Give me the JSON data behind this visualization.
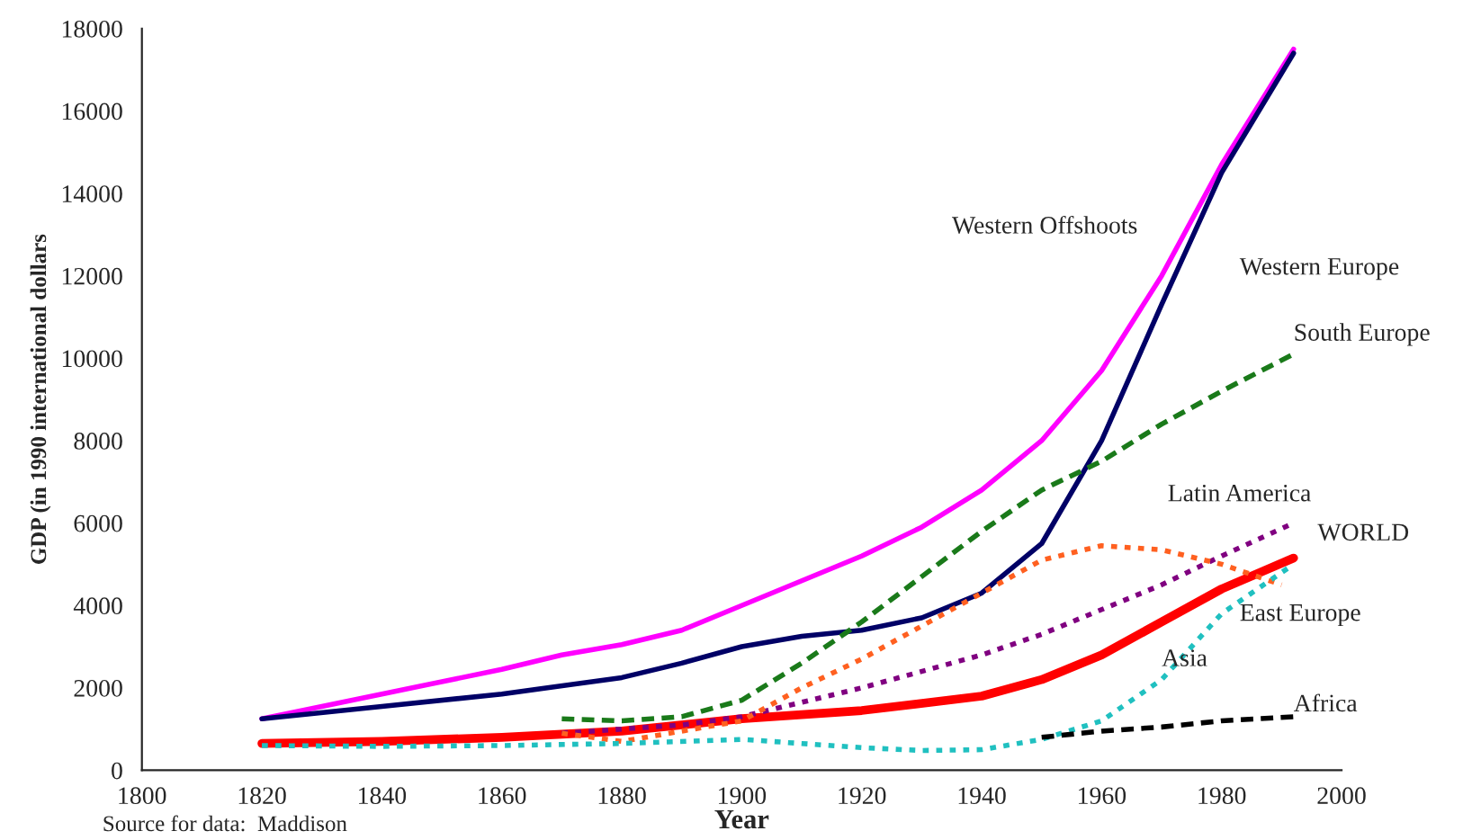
{
  "chart_data": {
    "type": "line",
    "xlabel": "Year",
    "ylabel": "GDP (in 1990 international dollars",
    "annotations": [
      "Source for data:  Maddison"
    ],
    "xlim": [
      1800,
      2000
    ],
    "xticks": [
      1800,
      1820,
      1840,
      1860,
      1880,
      1900,
      1920,
      1940,
      1960,
      1980,
      2000
    ],
    "ylim": [
      0,
      18000
    ],
    "yticks": [
      0,
      2000,
      4000,
      6000,
      8000,
      10000,
      12000,
      14000,
      16000,
      18000
    ],
    "grid": false,
    "legend": false,
    "marker": "none",
    "series": [
      {
        "name": "Western Offshoots",
        "color": "#ff00ff",
        "line_style": "solid",
        "x": [
          1820,
          1840,
          1860,
          1870,
          1880,
          1890,
          1900,
          1910,
          1920,
          1930,
          1940,
          1950,
          1960,
          1970,
          1980,
          1992
        ],
        "values": [
          1250,
          1850,
          2450,
          2800,
          3050,
          3400,
          4000,
          4600,
          5200,
          5900,
          6800,
          8000,
          9700,
          12000,
          14700,
          17500
        ]
      },
      {
        "name": "Western Europe",
        "color": "#000066",
        "line_style": "solid",
        "x": [
          1820,
          1840,
          1860,
          1880,
          1890,
          1900,
          1910,
          1920,
          1930,
          1940,
          1950,
          1960,
          1970,
          1980,
          1992
        ],
        "values": [
          1250,
          1550,
          1850,
          2250,
          2600,
          3000,
          3250,
          3400,
          3700,
          4300,
          5500,
          8000,
          11300,
          14500,
          17400
        ]
      },
      {
        "name": "South Europe",
        "color": "#1a7a1a",
        "line_style": "dashed",
        "x": [
          1870,
          1880,
          1890,
          1900,
          1910,
          1920,
          1930,
          1940,
          1950,
          1960,
          1970,
          1980,
          1992
        ],
        "values": [
          1250,
          1200,
          1300,
          1700,
          2600,
          3600,
          4700,
          5800,
          6800,
          7500,
          8400,
          9200,
          10100
        ]
      },
      {
        "name": "Latin America",
        "color": "#800080",
        "line_style": "dotted",
        "x": [
          1870,
          1890,
          1900,
          1920,
          1940,
          1950,
          1960,
          1970,
          1980,
          1992
        ],
        "values": [
          900,
          1100,
          1300,
          2000,
          2800,
          3300,
          3900,
          4500,
          5200,
          6000
        ]
      },
      {
        "name": "WORLD",
        "color": "#ff0000",
        "line_style": "solid",
        "x": [
          1820,
          1840,
          1860,
          1880,
          1900,
          1920,
          1940,
          1950,
          1960,
          1970,
          1980,
          1992
        ],
        "values": [
          650,
          700,
          800,
          950,
          1250,
          1450,
          1800,
          2200,
          2800,
          3600,
          4400,
          5150
        ]
      },
      {
        "name": "East Europe",
        "color": "#ff6020",
        "line_style": "dotted",
        "x": [
          1870,
          1880,
          1890,
          1900,
          1910,
          1920,
          1930,
          1940,
          1950,
          1960,
          1970,
          1980,
          1990
        ],
        "values": [
          900,
          700,
          950,
          1200,
          2000,
          2700,
          3500,
          4300,
          5100,
          5450,
          5350,
          5000,
          4500
        ]
      },
      {
        "name": "Asia",
        "color": "#20c0c0",
        "line_style": "dotted",
        "x": [
          1820,
          1840,
          1860,
          1880,
          1900,
          1910,
          1920,
          1930,
          1940,
          1950,
          1960,
          1970,
          1980,
          1992
        ],
        "values": [
          600,
          580,
          600,
          650,
          750,
          650,
          550,
          480,
          500,
          750,
          1200,
          2200,
          3800,
          5000
        ]
      },
      {
        "name": "Africa",
        "color": "#000000",
        "line_style": "dashed",
        "x": [
          1950,
          1960,
          1970,
          1980,
          1992
        ],
        "values": [
          800,
          950,
          1050,
          1200,
          1300
        ]
      }
    ]
  }
}
